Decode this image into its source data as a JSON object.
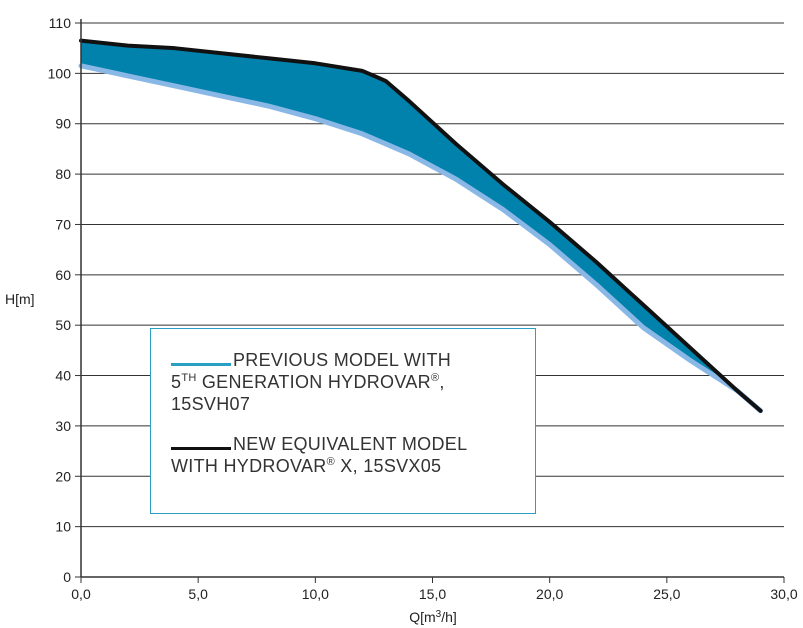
{
  "chart_data": {
    "type": "area",
    "xlabel": "Q[m",
    "xlabel_sup": "3",
    "xlabel_tail": "/h]",
    "ylabel": "H[m]",
    "xlim": [
      0,
      30
    ],
    "ylim": [
      0,
      110
    ],
    "x_ticks": [
      "0,0",
      "5,0",
      "10,0",
      "15,0",
      "20,0",
      "25,0",
      "30,0"
    ],
    "y_ticks": [
      "0",
      "10",
      "20",
      "30",
      "40",
      "50",
      "60",
      "70",
      "80",
      "90",
      "100",
      "110"
    ],
    "grid": "horizontal",
    "series": [
      {
        "name": "PREVIOUS MODEL WITH 5TH GENERATION HYDROVAR®, 15SVH07",
        "color": "#8ab8e6",
        "x": [
          0,
          2,
          4,
          6,
          8,
          10,
          12,
          14,
          16,
          18,
          20,
          22,
          24,
          26,
          28,
          29
        ],
        "y": [
          101.5,
          99.5,
          97.5,
          95.5,
          93.5,
          91,
          88,
          84,
          79,
          73,
          66,
          58,
          49.5,
          43,
          37,
          33
        ]
      },
      {
        "name": "NEW EQUIVALENT MODEL WITH HYDROVAR® X, 15SVX05",
        "color": "#111111",
        "x": [
          0,
          2,
          4,
          6,
          8,
          10,
          12,
          13,
          14,
          16,
          18,
          20,
          22,
          24,
          26,
          28,
          29
        ],
        "y": [
          106.5,
          105.5,
          105,
          104,
          103,
          102,
          100.5,
          98.5,
          94.5,
          86,
          78,
          70.5,
          62.5,
          54,
          45.5,
          37,
          33
        ]
      }
    ],
    "fill_color": "#0082ad",
    "legend": {
      "placement": "center-left",
      "entries": [
        {
          "swatch": "______",
          "line1": "PREVIOUS MODEL WITH",
          "line2_pre": "5",
          "line2_sup": "TH",
          "line2_post": " GENERATION HYDROVAR",
          "line2_mark": "®",
          "line2_end": ",",
          "line3": "15SVH07"
        },
        {
          "swatch": "______",
          "line1": "NEW EQUIVALENT MODEL",
          "line2_pre": "WITH HYDROVAR",
          "line2_mark": "®",
          "line2_post": " X, 15SVX05"
        }
      ]
    }
  }
}
